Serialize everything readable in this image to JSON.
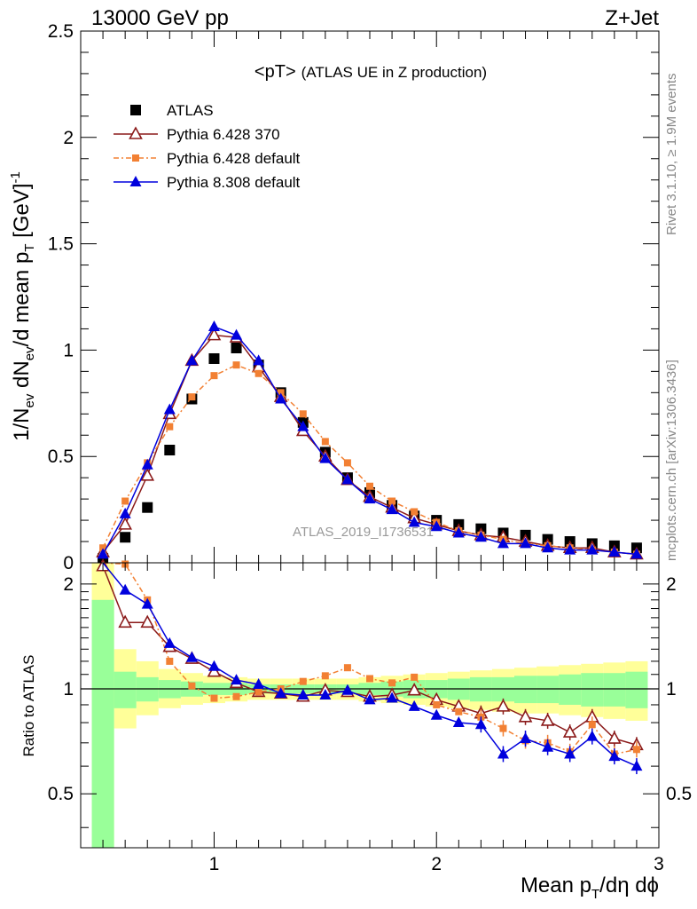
{
  "header": {
    "left": "13000 GeV pp",
    "right": "Z+Jet"
  },
  "side_labels": {
    "rivet": "Rivet 3.1.10, ≥ 1.9M events",
    "mcplots": "mcplots.cern.ch [arXiv:1306.3436]"
  },
  "chart_data": [
    {
      "type": "scatter",
      "title": "<pT> (ATLAS UE in Z production)",
      "title_main": "<pT>",
      "title_sub": "(ATLAS UE in Z production)",
      "watermark": "ATLAS_2019_I1736531",
      "ylabel": "1/Nev dNev/d mean pT [GeV]-1",
      "xlim": [
        0.4,
        3.0
      ],
      "ylim": [
        0,
        2.5
      ],
      "yticks": [
        "0",
        "0.5",
        "1",
        "1.5",
        "2",
        "2.5"
      ],
      "legend_position": "top-left",
      "x": [
        0.5,
        0.6,
        0.7,
        0.8,
        0.9,
        1.0,
        1.1,
        1.2,
        1.3,
        1.4,
        1.5,
        1.6,
        1.7,
        1.8,
        1.9,
        2.0,
        2.1,
        2.2,
        2.3,
        2.4,
        2.5,
        2.6,
        2.7,
        2.8,
        2.9
      ],
      "series": [
        {
          "name": "ATLAS",
          "color": "#000000",
          "marker": "square",
          "values": [
            0.02,
            0.12,
            0.26,
            0.53,
            0.77,
            0.96,
            1.01,
            0.93,
            0.8,
            0.66,
            0.52,
            0.4,
            0.33,
            0.27,
            0.22,
            0.2,
            0.18,
            0.16,
            0.14,
            0.13,
            0.11,
            0.1,
            0.09,
            0.08,
            0.07
          ]
        },
        {
          "name": "Pythia 6.428 370",
          "color": "#8b1a1a",
          "marker": "triangle-open",
          "values": [
            0.05,
            0.18,
            0.41,
            0.7,
            0.95,
            1.07,
            1.06,
            0.92,
            0.78,
            0.62,
            0.5,
            0.39,
            0.31,
            0.26,
            0.21,
            0.18,
            0.15,
            0.13,
            0.12,
            0.1,
            0.08,
            0.07,
            0.07,
            0.05,
            0.04
          ]
        },
        {
          "name": "Pythia 6.428 default",
          "color": "#f28033",
          "marker": "square-small",
          "values": [
            0.07,
            0.29,
            0.47,
            0.64,
            0.78,
            0.88,
            0.93,
            0.89,
            0.8,
            0.7,
            0.57,
            0.47,
            0.36,
            0.29,
            0.24,
            0.19,
            0.15,
            0.13,
            0.11,
            0.09,
            0.08,
            0.07,
            0.06,
            0.05,
            0.04
          ]
        },
        {
          "name": "Pythia 8.308 default",
          "color": "#0000dd",
          "marker": "triangle",
          "values": [
            0.04,
            0.23,
            0.46,
            0.72,
            0.95,
            1.11,
            1.07,
            0.95,
            0.77,
            0.64,
            0.49,
            0.39,
            0.3,
            0.25,
            0.19,
            0.17,
            0.14,
            0.12,
            0.09,
            0.09,
            0.07,
            0.06,
            0.06,
            0.05,
            0.04
          ]
        }
      ]
    },
    {
      "type": "line",
      "ylabel": "Ratio to ATLAS",
      "xlabel": "Mean pT/dη dϕ",
      "xlim": [
        0.4,
        3.0
      ],
      "ylim": [
        0.35,
        2.3
      ],
      "xticks": [
        "1",
        "2",
        "3"
      ],
      "yticks": [
        "0.5",
        "1",
        "2"
      ],
      "x": [
        0.5,
        0.6,
        0.7,
        0.8,
        0.9,
        1.0,
        1.1,
        1.2,
        1.3,
        1.4,
        1.5,
        1.6,
        1.7,
        1.8,
        1.9,
        2.0,
        2.1,
        2.2,
        2.3,
        2.4,
        2.5,
        2.6,
        2.7,
        2.8,
        2.9
      ],
      "band_yellow_lo": [
        0.35,
        0.77,
        0.84,
        0.88,
        0.9,
        0.91,
        0.92,
        0.93,
        0.93,
        0.93,
        0.93,
        0.93,
        0.92,
        0.91,
        0.9,
        0.89,
        0.88,
        0.87,
        0.86,
        0.85,
        0.85,
        0.84,
        0.83,
        0.82,
        0.81
      ],
      "band_yellow_hi": [
        2.3,
        1.3,
        1.2,
        1.14,
        1.11,
        1.09,
        1.08,
        1.07,
        1.07,
        1.07,
        1.07,
        1.07,
        1.08,
        1.09,
        1.1,
        1.11,
        1.12,
        1.13,
        1.14,
        1.15,
        1.16,
        1.17,
        1.18,
        1.19,
        1.2
      ],
      "band_green_lo": [
        0.35,
        0.88,
        0.92,
        0.94,
        0.95,
        0.96,
        0.96,
        0.97,
        0.97,
        0.97,
        0.97,
        0.97,
        0.96,
        0.95,
        0.94,
        0.94,
        0.93,
        0.92,
        0.92,
        0.91,
        0.91,
        0.9,
        0.89,
        0.89,
        0.88
      ],
      "band_green_hi": [
        1.8,
        1.12,
        1.08,
        1.06,
        1.05,
        1.04,
        1.04,
        1.03,
        1.03,
        1.03,
        1.03,
        1.03,
        1.04,
        1.05,
        1.06,
        1.06,
        1.07,
        1.08,
        1.08,
        1.09,
        1.09,
        1.1,
        1.11,
        1.11,
        1.12
      ],
      "series": [
        {
          "name": "Pythia 6.428 370",
          "color": "#8b1a1a",
          "marker": "triangle-open",
          "values": [
            2.25,
            1.55,
            1.55,
            1.32,
            1.22,
            1.12,
            1.04,
            0.98,
            0.97,
            0.95,
            0.99,
            0.98,
            0.95,
            0.96,
            0.99,
            0.93,
            0.89,
            0.85,
            0.89,
            0.83,
            0.81,
            0.75,
            0.83,
            0.72,
            0.69
          ]
        },
        {
          "name": "Pythia 6.428 default",
          "color": "#f28033",
          "marker": "square-small",
          "values": [
            2.5,
            2.28,
            1.8,
            1.2,
            1.02,
            0.94,
            0.95,
            0.98,
            1.0,
            1.05,
            1.09,
            1.15,
            1.07,
            1.04,
            1.08,
            0.9,
            0.86,
            0.83,
            0.77,
            0.71,
            0.7,
            0.66,
            0.79,
            0.65,
            0.67
          ]
        },
        {
          "name": "Pythia 8.308 default",
          "color": "#0000dd",
          "marker": "triangle",
          "values": [
            2.5,
            1.92,
            1.75,
            1.35,
            1.23,
            1.16,
            1.06,
            1.03,
            0.97,
            0.96,
            0.96,
            0.99,
            0.93,
            0.94,
            0.89,
            0.84,
            0.8,
            0.79,
            0.65,
            0.72,
            0.68,
            0.65,
            0.73,
            0.64,
            0.6
          ]
        }
      ]
    }
  ]
}
